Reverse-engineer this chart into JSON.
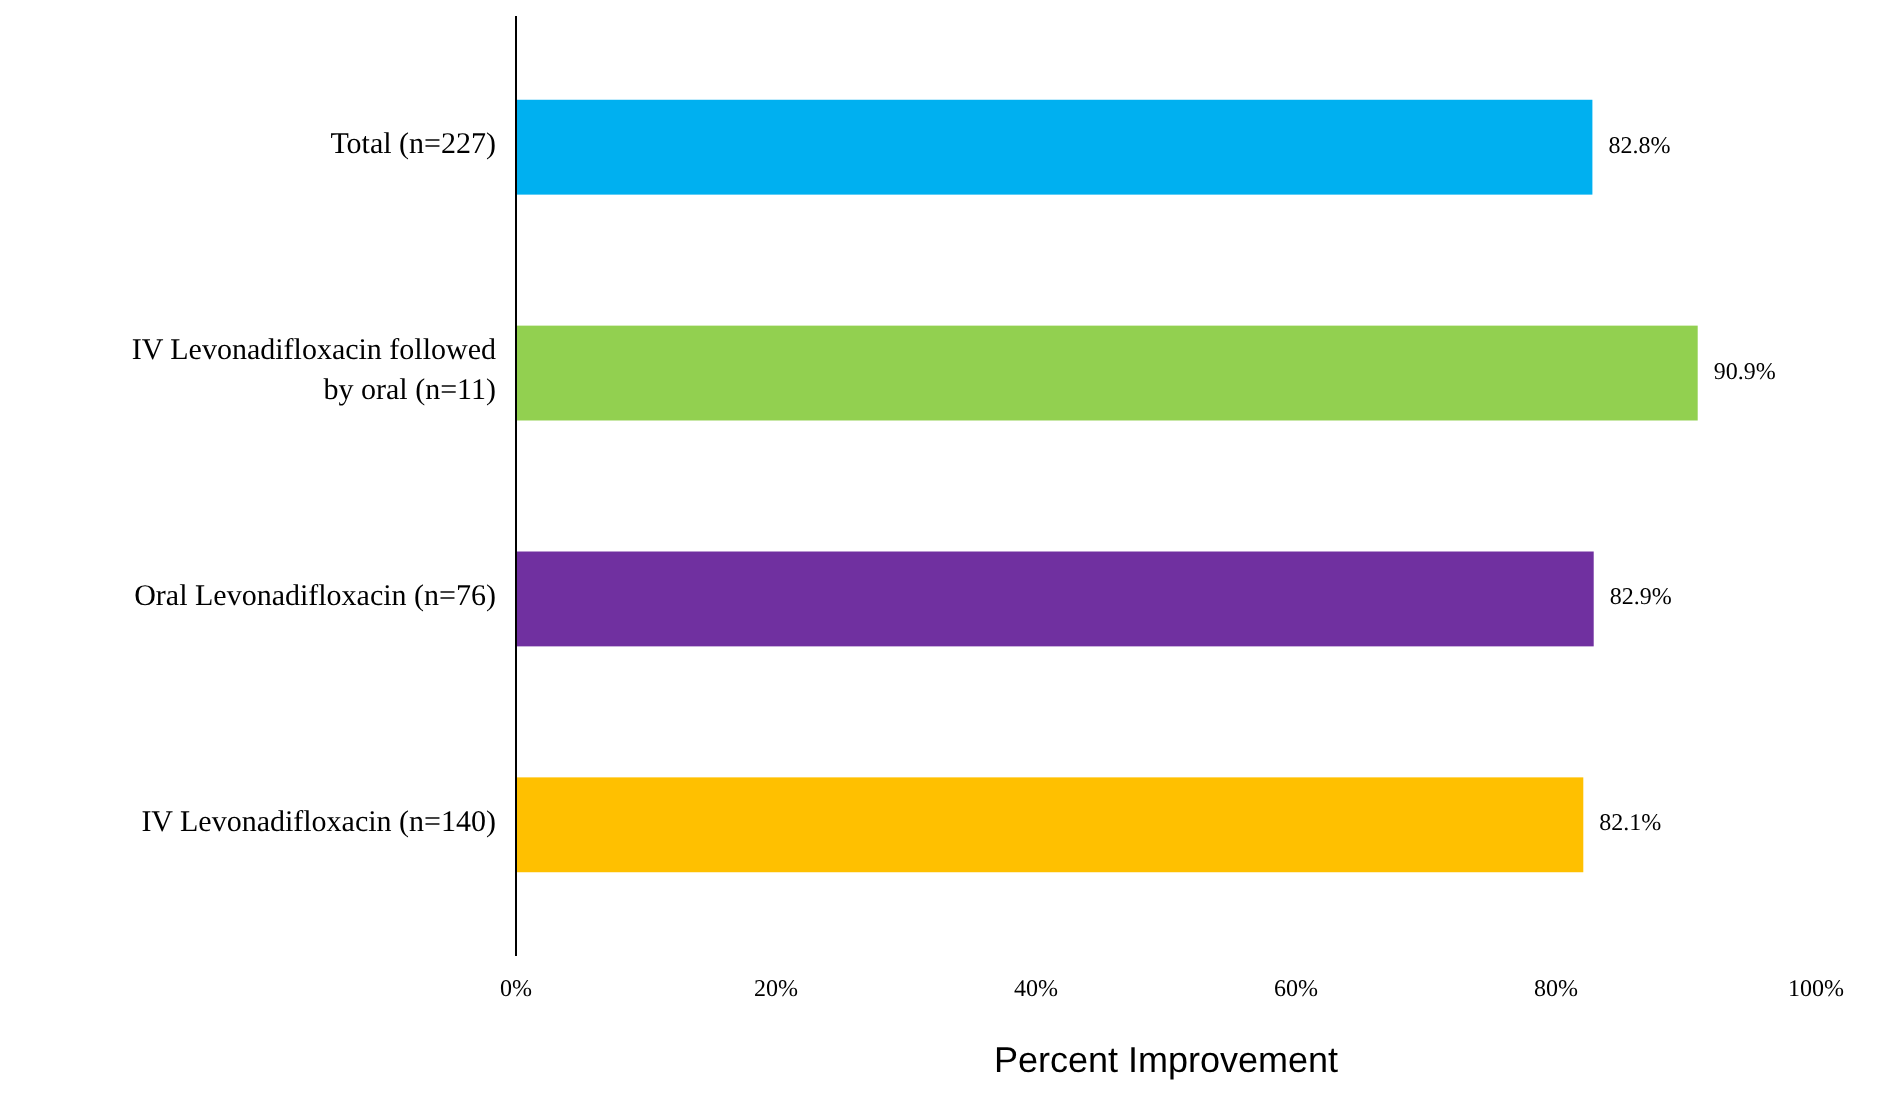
{
  "chart_data": {
    "type": "bar",
    "orientation": "horizontal",
    "xlabel": "Percent Improvement",
    "categories": [
      "Total (n=227)",
      "IV Levonadifloxacin followed by oral (n=11)",
      "Oral Levonadifloxacin (n=76)",
      "IV Levonadifloxacin (n=140)"
    ],
    "values": [
      82.8,
      90.9,
      82.9,
      82.1
    ],
    "colors": [
      "#00b0f0",
      "#92d050",
      "#7030a0",
      "#ffc000"
    ],
    "value_labels": [
      "82.8%",
      "90.9%",
      "82.9%",
      "82.1%"
    ],
    "xlim": [
      0,
      100
    ],
    "xticks": [
      {
        "value": 0,
        "label": "0%"
      },
      {
        "value": 20,
        "label": "20%"
      },
      {
        "value": 40,
        "label": "40%"
      },
      {
        "value": 60,
        "label": "60%"
      },
      {
        "value": 80,
        "label": "80%"
      },
      {
        "value": 100,
        "label": "100%"
      }
    ],
    "grid": false
  }
}
